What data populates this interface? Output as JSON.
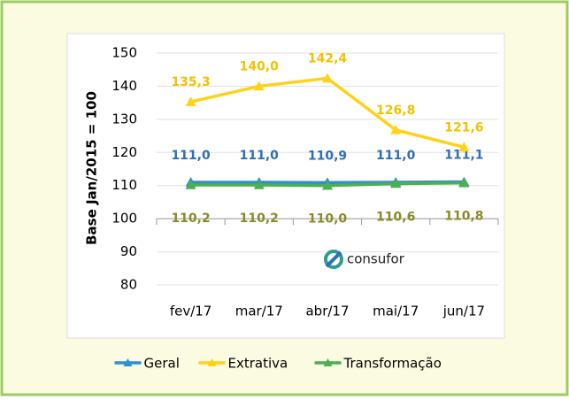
{
  "chart_data": {
    "type": "line",
    "y_label": "Base Jan/2015 = 100",
    "categories": [
      "fev/17",
      "mar/17",
      "abr/17",
      "mai/17",
      "jun/17"
    ],
    "series": [
      {
        "name": "Geral",
        "color": "#2e8fd4",
        "label_color": "#2e6fb5",
        "values": [
          111.0,
          111.0,
          110.9,
          111.0,
          111.1
        ],
        "value_labels": [
          "111,0",
          "111,0",
          "110,9",
          "111,0",
          "111,1"
        ]
      },
      {
        "name": "Extrativa",
        "color": "#ffd21a",
        "label_color": "#f2c200",
        "values": [
          135.3,
          140.0,
          142.4,
          126.8,
          121.6
        ],
        "value_labels": [
          "135,3",
          "140,0",
          "142,4",
          "126,8",
          "121,6"
        ]
      },
      {
        "name": "Transformação",
        "color": "#4caf50",
        "label_color": "#8a8a2a",
        "values": [
          110.2,
          110.2,
          110.0,
          110.6,
          110.8
        ],
        "value_labels": [
          "110,2",
          "110,2",
          "110,0",
          "110,6",
          "110,8"
        ]
      }
    ],
    "ylim": [
      80,
      150
    ],
    "yticks": [
      80,
      90,
      100,
      110,
      120,
      130,
      140,
      150
    ],
    "x_axis_crosses": 100,
    "grid": true,
    "legend": "bottom",
    "watermark": "consufor"
  }
}
